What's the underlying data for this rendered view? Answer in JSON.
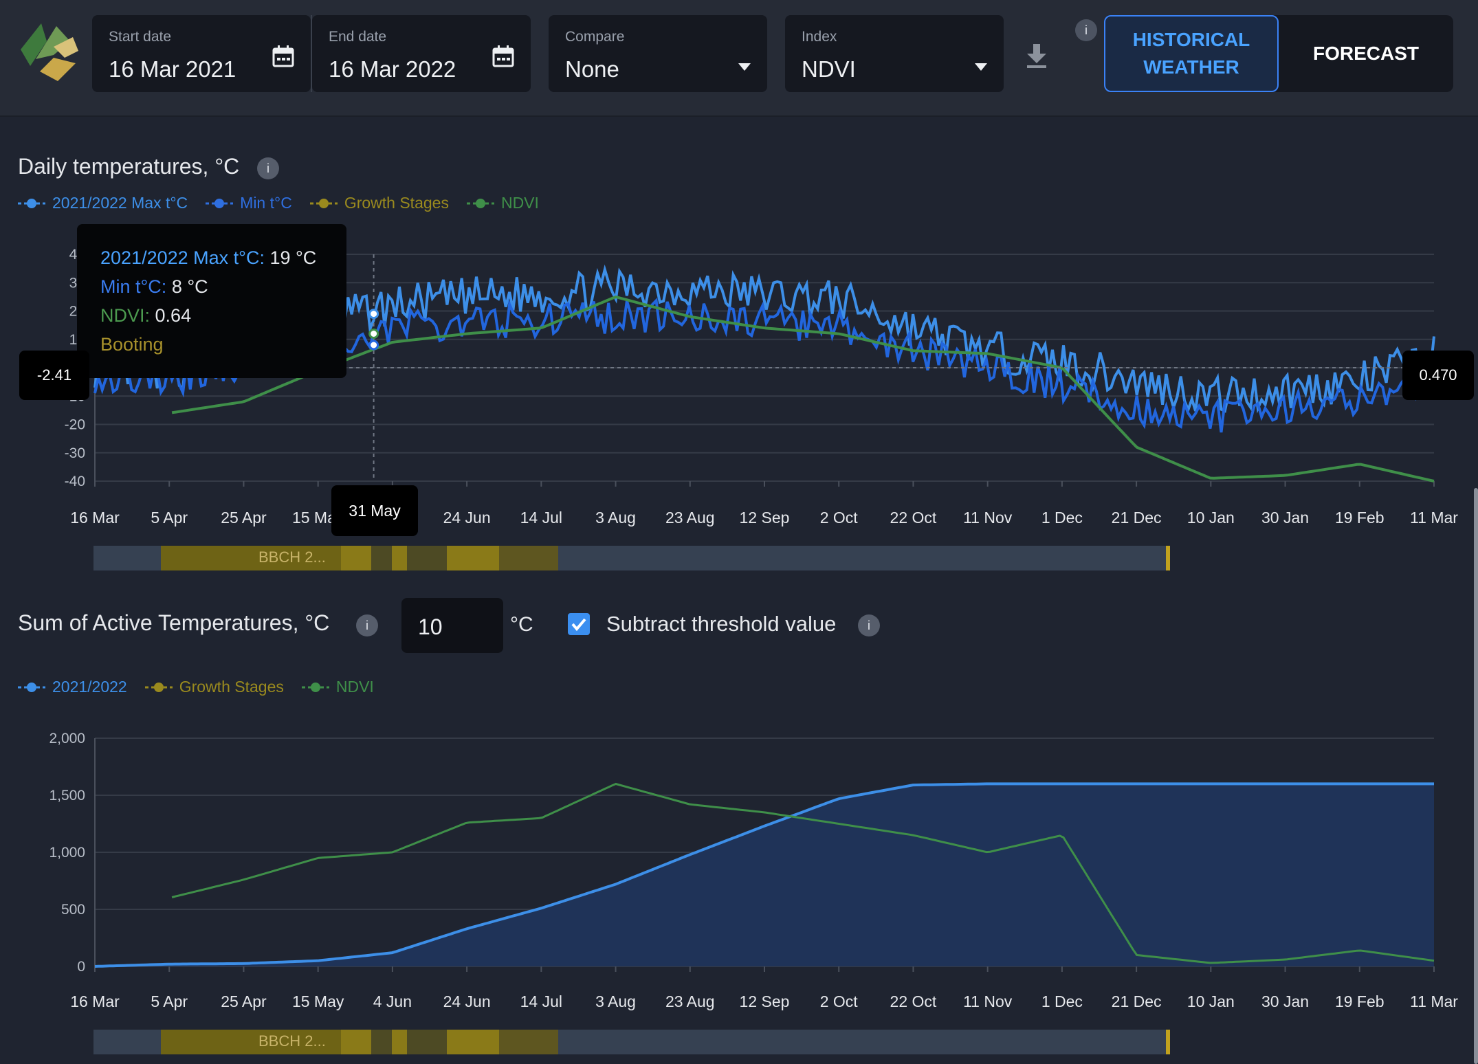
{
  "header": {
    "start_date_label": "Start date",
    "start_date_value": "16 Mar 2021",
    "end_date_label": "End date",
    "end_date_value": "16 Mar 2022",
    "compare_label": "Compare",
    "compare_value": "None",
    "index_label": "Index",
    "index_value": "NDVI",
    "info_label": "i",
    "historical_label_1": "HISTORICAL",
    "historical_label_2": "WEATHER",
    "forecast_label": "FORECAST"
  },
  "daily": {
    "title": "Daily temperatures, °C",
    "info": "i",
    "legend": [
      {
        "label": "2021/2022 Max t°C",
        "color": "#3d8fe8"
      },
      {
        "label": "Min t°C",
        "color": "#2f6fe0"
      },
      {
        "label": "Growth Stages",
        "color": "#9a8a1e"
      },
      {
        "label": "NDVI",
        "color": "#3f8f49"
      }
    ],
    "tooltip": {
      "max_label": "2021/2022 Max t°C:",
      "max_value": "19 °C",
      "min_label": "Min t°C:",
      "min_value": "8 °C",
      "ndvi_label": "NDVI:",
      "ndvi_value": "0.64",
      "stage": "Booting"
    },
    "crosshair_left": "-2.41",
    "crosshair_right": "0.470",
    "crosshair_date": "31 May",
    "yticks": [
      "40",
      "30",
      "20",
      "10",
      "0",
      "-10",
      "-20",
      "-30",
      "-40"
    ],
    "xticks": [
      "16 Mar",
      "5 Apr",
      "25 Apr",
      "15 May",
      "4 Jun",
      "24 Jun",
      "14 Jul",
      "3 Aug",
      "23 Aug",
      "12 Sep",
      "2 Oct",
      "22 Oct",
      "11 Nov",
      "1 Dec",
      "21 Dec",
      "10 Jan",
      "30 Jan",
      "19 Feb",
      "11 Mar"
    ],
    "bbch_label": "BBCH 2..."
  },
  "sat": {
    "title": "Sum of Active Temperatures, °C",
    "info": "i",
    "threshold_value": "10",
    "threshold_unit": "°C",
    "subtract_label": "Subtract threshold value",
    "subtract_checked": true,
    "legend": [
      {
        "label": "2021/2022",
        "color": "#3d8fe8"
      },
      {
        "label": "Growth Stages",
        "color": "#9a8a1e"
      },
      {
        "label": "NDVI",
        "color": "#3f8f49"
      }
    ],
    "yticks": [
      "2,000",
      "1,500",
      "1,000",
      "500",
      "0"
    ],
    "xticks": [
      "16 Mar",
      "5 Apr",
      "25 Apr",
      "15 May",
      "4 Jun",
      "24 Jun",
      "14 Jul",
      "3 Aug",
      "23 Aug",
      "12 Sep",
      "2 Oct",
      "22 Oct",
      "11 Nov",
      "1 Dec",
      "21 Dec",
      "10 Jan",
      "30 Jan",
      "19 Feb",
      "11 Mar"
    ],
    "bbch_label": "BBCH 2..."
  },
  "chart_data": [
    {
      "type": "line",
      "title": "Daily temperatures, °C",
      "x": [
        "16 Mar",
        "5 Apr",
        "25 Apr",
        "15 May",
        "4 Jun",
        "24 Jun",
        "14 Jul",
        "3 Aug",
        "23 Aug",
        "12 Sep",
        "2 Oct",
        "22 Oct",
        "11 Nov",
        "1 Dec",
        "21 Dec",
        "10 Jan",
        "30 Jan",
        "19 Feb",
        "11 Mar"
      ],
      "ylim": [
        -40,
        40
      ],
      "series": [
        {
          "name": "2021/2022 Max t°C",
          "values": [
            0,
            -2,
            8,
            16,
            22,
            25,
            26,
            28,
            28,
            26,
            24,
            14,
            6,
            2,
            -5,
            -10,
            -8,
            -5,
            5
          ]
        },
        {
          "name": "Min t°C",
          "values": [
            -3,
            -5,
            2,
            8,
            14,
            16,
            17,
            18,
            18,
            16,
            14,
            6,
            0,
            -6,
            -14,
            -18,
            -15,
            -12,
            -5
          ]
        },
        {
          "name": "NDVI",
          "values": [
            null,
            -16,
            -12,
            -1,
            9,
            12,
            14,
            25,
            18,
            14,
            12,
            6,
            5,
            0,
            -28,
            -39,
            -38,
            -34,
            -40
          ]
        }
      ]
    },
    {
      "type": "area",
      "title": "Sum of Active Temperatures, °C",
      "x": [
        "16 Mar",
        "5 Apr",
        "25 Apr",
        "15 May",
        "4 Jun",
        "24 Jun",
        "14 Jul",
        "3 Aug",
        "23 Aug",
        "12 Sep",
        "2 Oct",
        "22 Oct",
        "11 Nov",
        "1 Dec",
        "21 Dec",
        "10 Jan",
        "30 Jan",
        "19 Feb",
        "11 Mar"
      ],
      "ylim": [
        0,
        2000
      ],
      "series": [
        {
          "name": "2021/2022",
          "values": [
            0,
            20,
            25,
            50,
            120,
            330,
            510,
            720,
            980,
            1230,
            1470,
            1590,
            1600,
            1600,
            1600,
            1600,
            1600,
            1600,
            1600
          ]
        },
        {
          "name": "NDVI",
          "values": [
            null,
            600,
            760,
            950,
            1000,
            1260,
            1300,
            1600,
            1420,
            1350,
            1250,
            1150,
            1000,
            1150,
            100,
            30,
            60,
            140,
            50
          ]
        }
      ]
    }
  ]
}
